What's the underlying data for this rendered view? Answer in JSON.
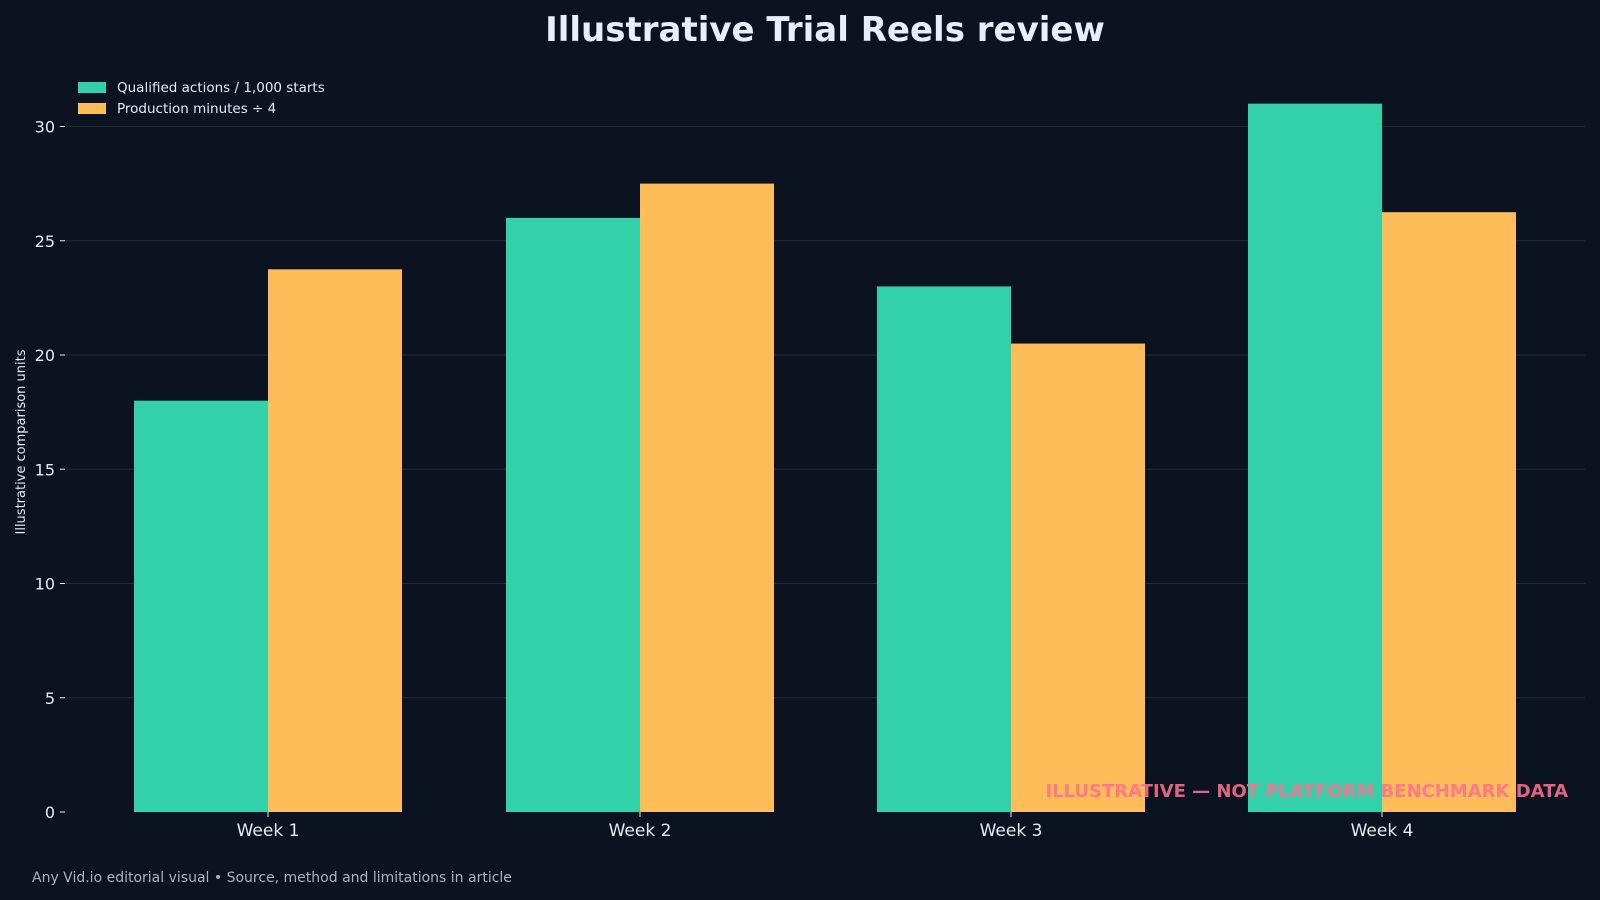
{
  "colors": {
    "background": "#0c1320",
    "series_a": "#33d1aa",
    "series_b": "#ffbd59",
    "grid": "#1e2b38",
    "text": "#e6ebf2",
    "watermark": "#ff6f8f"
  },
  "footer": "Any Vid.io editorial visual • Source, method and limitations in article",
  "watermark": "ILLUSTRATIVE — NOT PLATFORM BENCHMARK DATA",
  "chart_data": {
    "type": "bar",
    "title": "Illustrative Trial Reels review",
    "xlabel": "",
    "ylabel": "Illustrative comparison units",
    "categories": [
      "Week 1",
      "Week 2",
      "Week 3",
      "Week 4"
    ],
    "series": [
      {
        "name": "Qualified actions / 1,000 starts",
        "values": [
          18,
          26,
          23,
          31
        ]
      },
      {
        "name": "Production minutes ÷ 4",
        "values": [
          23.75,
          27.5,
          20.5,
          26.25
        ]
      }
    ],
    "ylim": [
      0,
      32
    ],
    "yticks": [
      "0",
      "5",
      "10",
      "15",
      "20",
      "25",
      "30"
    ],
    "grid": true,
    "legend": "top-left"
  }
}
